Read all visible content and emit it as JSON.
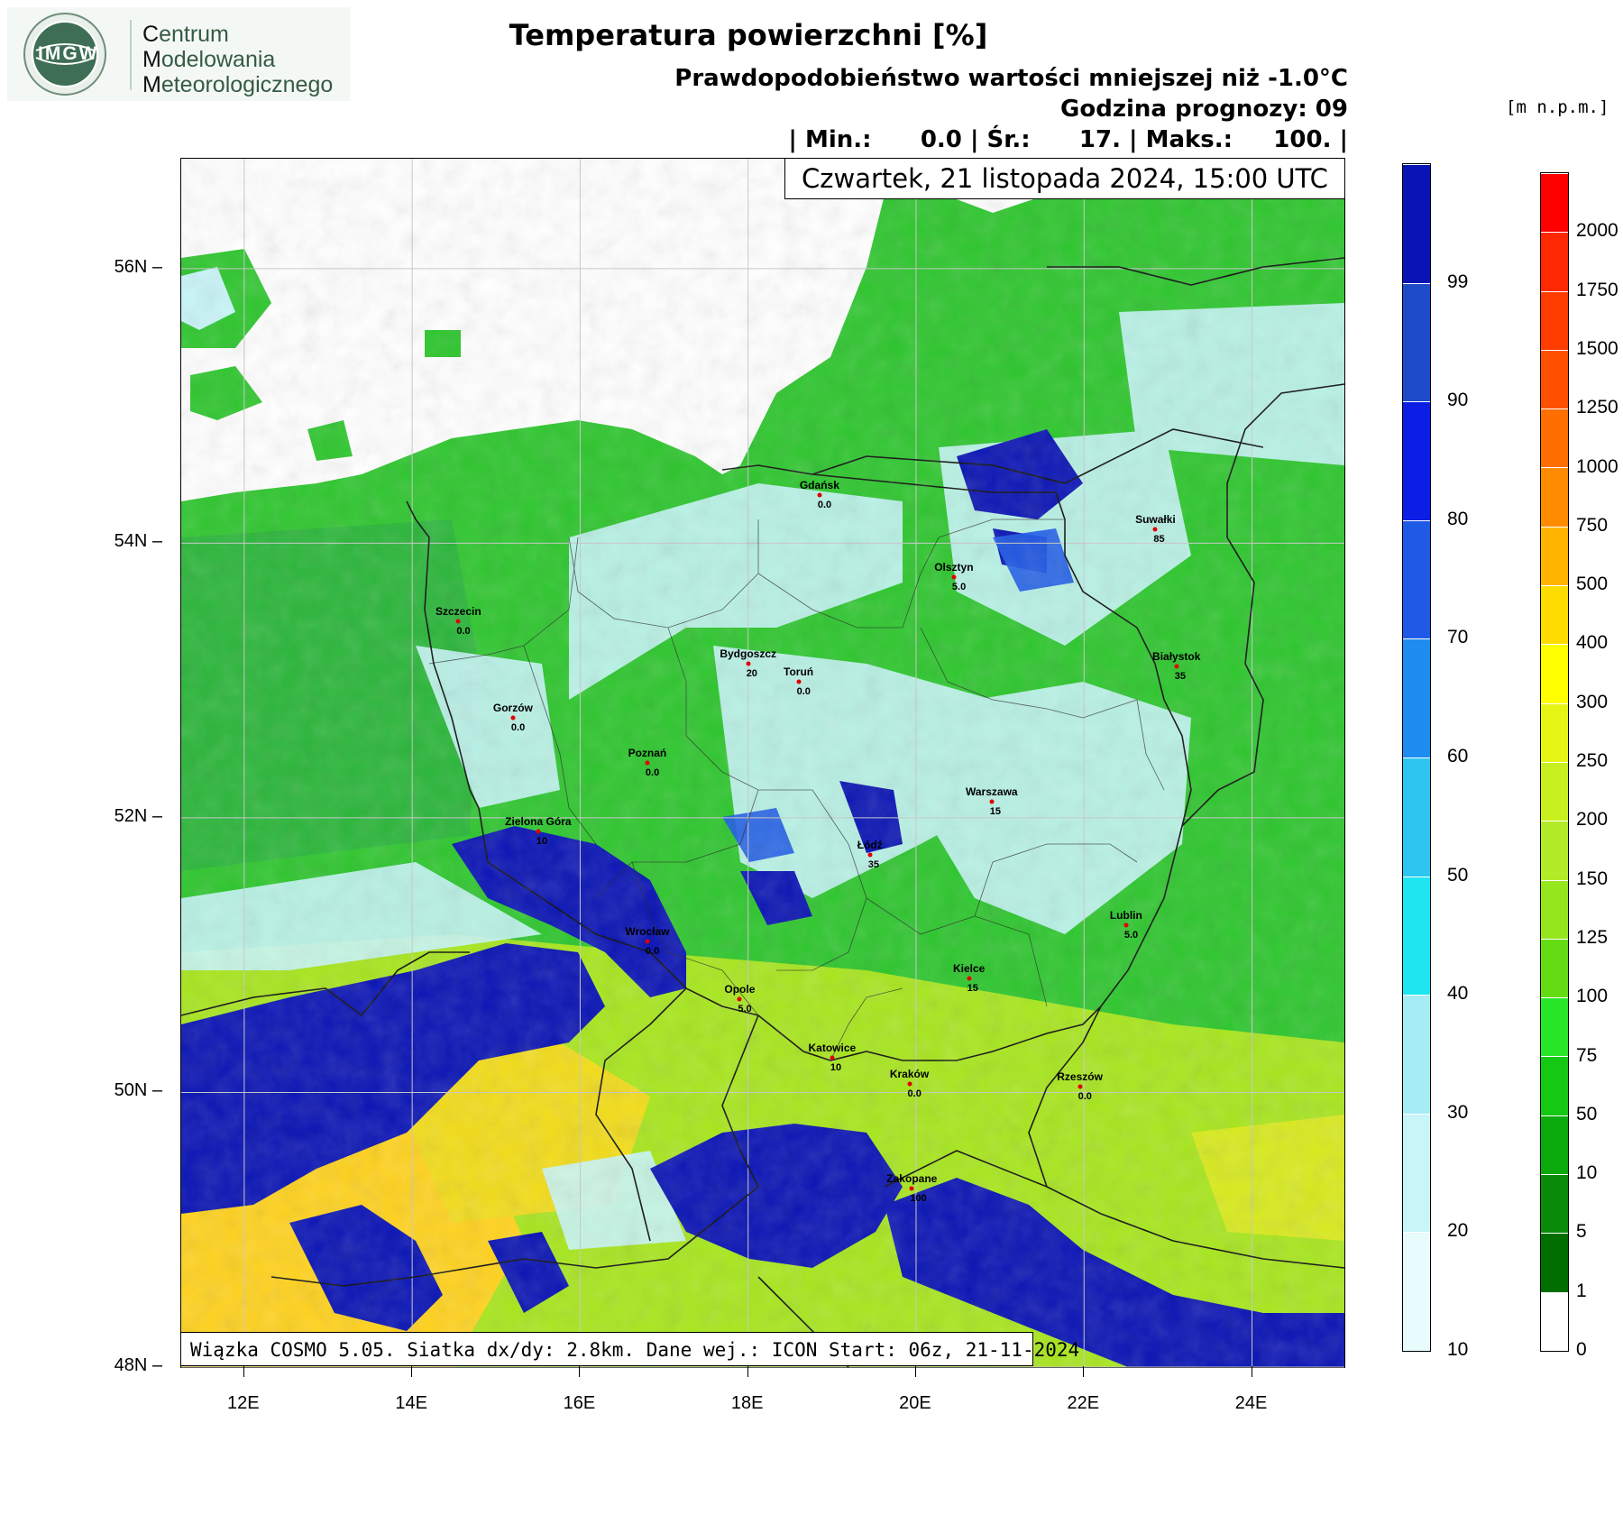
{
  "logo": {
    "seal_text": "IMGW",
    "line1_initial": "C",
    "line1_rest": "entrum",
    "line2_initial": "M",
    "line2_rest": "odelowania",
    "line3_initial": "M",
    "line3_rest": "eteorologicznego"
  },
  "title": "Temperatura powierzchni [%]",
  "subtitle_lines": [
    "Prawdopodobieństwo wartości mniejszej niż -1.0°C",
    "Godzina prognozy: 09",
    "| Min.:      0.0 | Śr.:      17. | Maks.:     100. |"
  ],
  "date_label": "Czwartek, 21 listopada 2024, 15:00 UTC",
  "footer": "Wiązka COSMO 5.05. Siatka dx/dy: 2.8km. Dane wej.: ICON Start: 06z, 21-11-2024",
  "elevation_unit": "[m n.p.m.]",
  "axes": {
    "lat_ticks": [
      {
        "label": "56N",
        "value": 56
      },
      {
        "label": "54N",
        "value": 54
      },
      {
        "label": "52N",
        "value": 52
      },
      {
        "label": "50N",
        "value": 50
      },
      {
        "label": "48N",
        "value": 48
      }
    ],
    "lon_ticks": [
      {
        "label": "12E",
        "value": 12
      },
      {
        "label": "14E",
        "value": 14
      },
      {
        "label": "16E",
        "value": 16
      },
      {
        "label": "18E",
        "value": 18
      },
      {
        "label": "20E",
        "value": 20
      },
      {
        "label": "22E",
        "value": 22
      },
      {
        "label": "24E",
        "value": 24
      }
    ],
    "lon_range": [
      11.25,
      25.1
    ],
    "lat_range": [
      48,
      56.8
    ]
  },
  "cities": [
    {
      "name": "Gdańsk",
      "value": "0.0",
      "lon": 18.85,
      "lat": 54.35
    },
    {
      "name": "Suwałki",
      "value": "85",
      "lon": 22.85,
      "lat": 54.1
    },
    {
      "name": "Olsztyn",
      "value": "5.0",
      "lon": 20.45,
      "lat": 53.75
    },
    {
      "name": "Szczecin",
      "value": "0.0",
      "lon": 14.55,
      "lat": 53.43
    },
    {
      "name": "Białystok",
      "value": "35",
      "lon": 23.1,
      "lat": 53.1
    },
    {
      "name": "Bydgoszcz",
      "value": "20",
      "lon": 18.0,
      "lat": 53.12
    },
    {
      "name": "Toruń",
      "value": "0.0",
      "lon": 18.6,
      "lat": 52.99
    },
    {
      "name": "Gorzów",
      "value": "0.0",
      "lon": 15.2,
      "lat": 52.73
    },
    {
      "name": "Poznań",
      "value": "0.0",
      "lon": 16.8,
      "lat": 52.4
    },
    {
      "name": "Warszawa",
      "value": "15",
      "lon": 20.9,
      "lat": 52.12
    },
    {
      "name": "Zielona Góra",
      "value": "10",
      "lon": 15.5,
      "lat": 51.9
    },
    {
      "name": "Łódź",
      "value": "35",
      "lon": 19.45,
      "lat": 51.73
    },
    {
      "name": "Lublin",
      "value": "5.0",
      "lon": 22.5,
      "lat": 51.22
    },
    {
      "name": "Wrocław",
      "value": "0.0",
      "lon": 16.8,
      "lat": 51.1
    },
    {
      "name": "Kielce",
      "value": "15",
      "lon": 20.63,
      "lat": 50.83
    },
    {
      "name": "Opole",
      "value": "5.0",
      "lon": 17.9,
      "lat": 50.68
    },
    {
      "name": "Katowice",
      "value": "10",
      "lon": 19.0,
      "lat": 50.25
    },
    {
      "name": "Kraków",
      "value": "0.0",
      "lon": 19.92,
      "lat": 50.06
    },
    {
      "name": "Rzeszów",
      "value": "0.0",
      "lon": 21.95,
      "lat": 50.04
    },
    {
      "name": "Zakopane",
      "value": "100",
      "lon": 19.95,
      "lat": 49.3
    }
  ],
  "prob_colorbar": {
    "labels": [
      "99",
      "90",
      "80",
      "70",
      "60",
      "50",
      "40",
      "30",
      "20",
      "10"
    ],
    "colors": [
      "#0a14b4",
      "#1e4bc8",
      "#0a1ee6",
      "#1e5ae6",
      "#1e8cf0",
      "#2cc6f0",
      "#1ee6f0",
      "#a5ecf5",
      "#c8f5f8",
      "#e8fbfd"
    ]
  },
  "elev_colorbar": {
    "labels": [
      "2000",
      "1750",
      "1500",
      "1250",
      "1000",
      "750",
      "500",
      "400",
      "300",
      "250",
      "200",
      "150",
      "125",
      "100",
      "75",
      "50",
      "10",
      "5",
      "1",
      "0"
    ],
    "colors": [
      "#ff0000",
      "#ff2800",
      "#ff3c00",
      "#ff5000",
      "#ff6e00",
      "#ff8c00",
      "#ffb400",
      "#ffdc00",
      "#ffff00",
      "#e6f514",
      "#c8f01e",
      "#b4eb28",
      "#96e61e",
      "#64dc14",
      "#28e628",
      "#14c814",
      "#0aaa0a",
      "#0a8c0a",
      "#006e00",
      "#ffffff"
    ]
  }
}
